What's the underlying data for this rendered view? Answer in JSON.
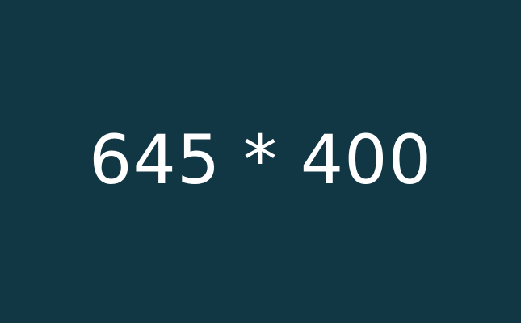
{
  "placeholder": {
    "text": "645 * 400",
    "background_color": "#123744",
    "text_color": "#ffffff"
  }
}
